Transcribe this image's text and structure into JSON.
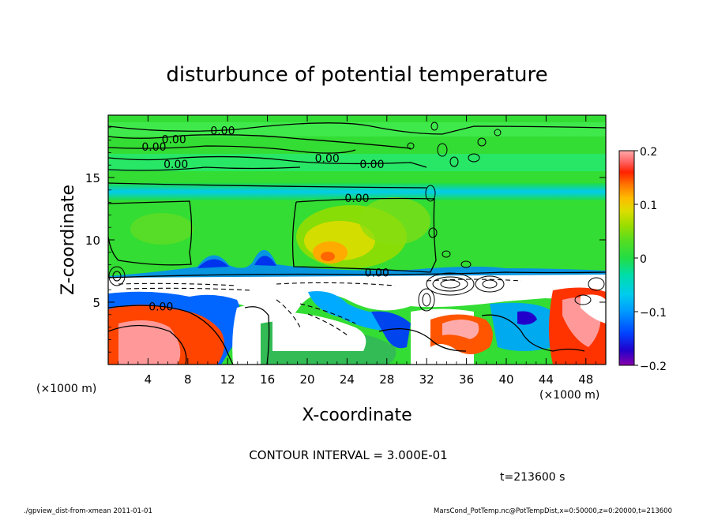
{
  "chart_data": {
    "type": "heatmap",
    "title": "disturbunce of potential temperature",
    "xlabel": "X-coordinate",
    "ylabel": "Z-coordinate",
    "x_unit_label": "(×1000 m)",
    "y_unit_label": "(×1000 m)",
    "xlim": [
      0,
      50
    ],
    "ylim": [
      0,
      20
    ],
    "x_ticks": [
      4,
      8,
      12,
      16,
      20,
      24,
      28,
      32,
      36,
      40,
      44,
      48
    ],
    "y_ticks": [
      5,
      10,
      15
    ],
    "colorbar": {
      "min": -0.2,
      "max": 0.2,
      "ticks": [
        "0.2",
        "0.1",
        "0",
        "−0.1",
        "−0.2"
      ],
      "tick_values": [
        0.2,
        0.1,
        0,
        -0.1,
        -0.2
      ]
    },
    "contour_labels": [
      {
        "text": "0.00",
        "x": 11.5,
        "z": 18.7
      },
      {
        "text": "0.00",
        "x": 6.6,
        "z": 18.0
      },
      {
        "text": "0.00",
        "x": 4.6,
        "z": 17.4
      },
      {
        "text": "0.00",
        "x": 6.8,
        "z": 16.0
      },
      {
        "text": "0.00",
        "x": 22.0,
        "z": 16.5
      },
      {
        "text": "0.00",
        "x": 26.5,
        "z": 16.0
      },
      {
        "text": "0.00",
        "x": 25.0,
        "z": 13.3
      },
      {
        "text": "0.00",
        "x": 27.0,
        "z": 7.3
      },
      {
        "text": "0.00",
        "x": 5.3,
        "z": 4.6
      }
    ],
    "contour_interval_text": "CONTOUR INTERVAL = 3.000E-01",
    "time_text": "t=213600 s"
  },
  "footer": {
    "left": "./gpview_dist-from-xmean  2011-01-01",
    "right": "MarsCond_PotTemp.nc@PotTempDist,x=0:50000,z=0:20000,t=213600"
  },
  "colors": {
    "background_field": "#33dd33",
    "colormap": [
      "#8800aa",
      "#2200cc",
      "#0044ff",
      "#0099ff",
      "#00ccee",
      "#00ddaa",
      "#22dd44",
      "#55dd22",
      "#99dd00",
      "#dddd00",
      "#ffbb00",
      "#ff7700",
      "#ff3300",
      "#ff0000",
      "#ff6666",
      "#ffaaaa"
    ]
  }
}
